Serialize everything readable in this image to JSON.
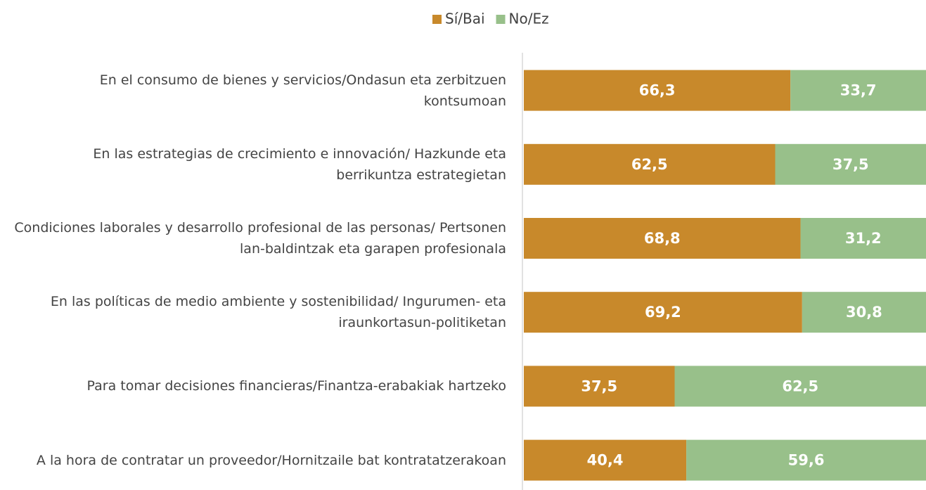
{
  "chart_data": {
    "type": "stacked_barh",
    "categories": [
      "En el consumo de bienes y servicios/Ondasun eta zerbitzuen kontsumoan",
      "En las estrategias de crecimiento e innovación/ Hazkunde eta berrikuntza estrategietan",
      "Condiciones laborales y desarrollo profesional de las personas/ Pertsonen lan-baldintzak eta garapen profesionala",
      "En las políticas de medio ambiente y sostenibilidad/ Ingurumen- eta iraunkortasun-politiketan",
      "Para tomar decisiones financieras/Finantza-erabakiak hartzeko",
      "A la hora de contratar un proveedor/Hornitzaile bat kontratatzerakoan"
    ],
    "series": [
      {
        "name": "Sí/Bai",
        "color": "#c8892b",
        "values": [
          66.3,
          62.5,
          68.8,
          69.2,
          37.5,
          40.4
        ],
        "value_labels": [
          "66,3",
          "62,5",
          "68,8",
          "69,2",
          "37,5",
          "40,4"
        ]
      },
      {
        "name": "No/Ez",
        "color": "#98c08a",
        "values": [
          33.7,
          37.5,
          31.2,
          30.8,
          62.5,
          59.6
        ],
        "value_labels": [
          "33,7",
          "37,5",
          "31,2",
          "30,8",
          "62,5",
          "59,6"
        ]
      }
    ],
    "xlim": [
      0,
      100
    ],
    "legend": "top"
  }
}
